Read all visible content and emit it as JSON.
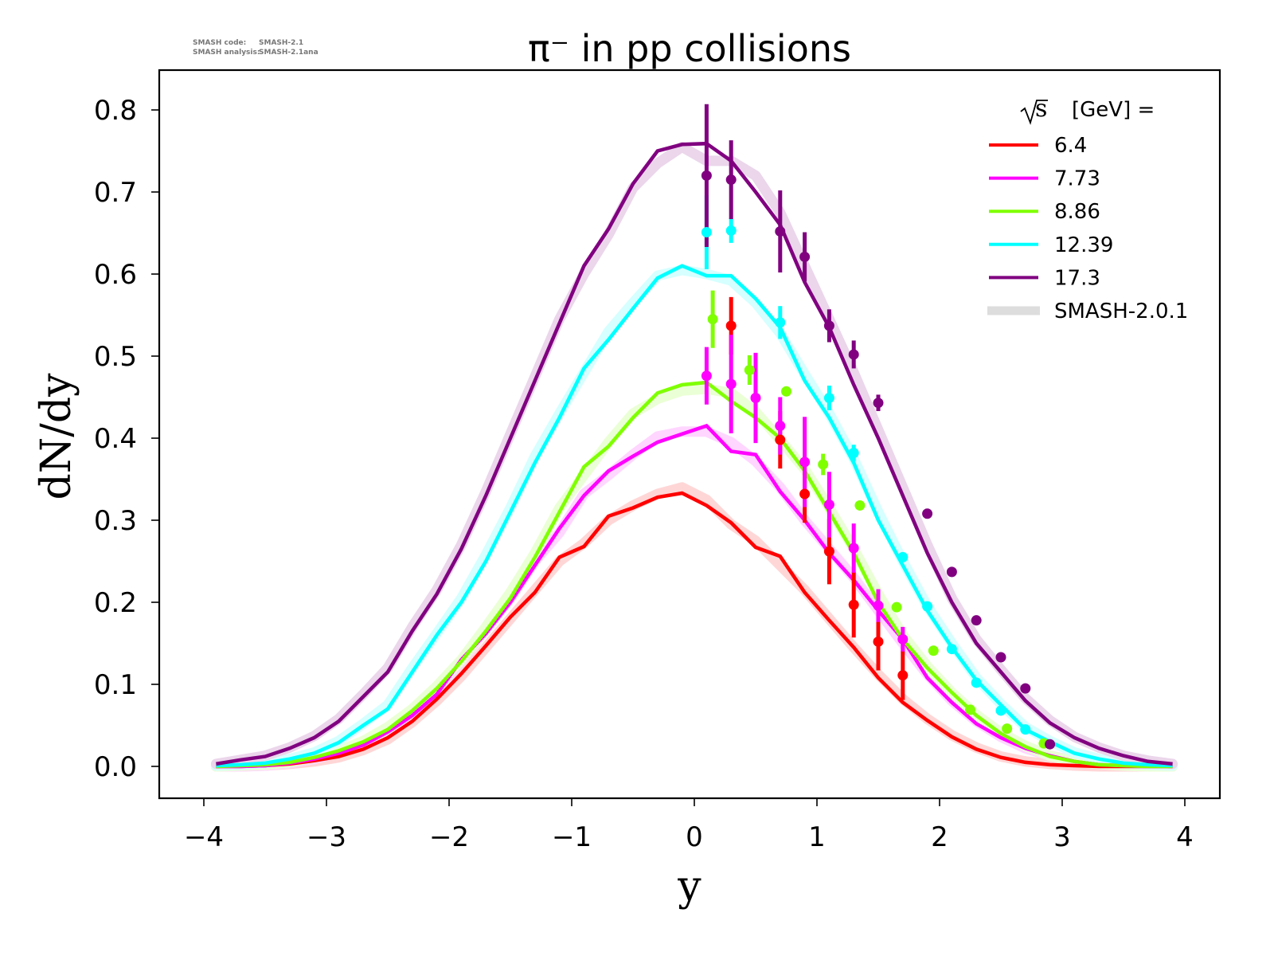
{
  "meta_text": {
    "line1_label": "SMASH code:",
    "line1_value": "SMASH-2.1",
    "line2_label": "SMASH analysis:",
    "line2_value": "SMASH-2.1ana"
  },
  "chart_data": {
    "type": "line",
    "title": "π⁻ in pp collisions",
    "xlabel": "y",
    "ylabel": "dN/dy",
    "xlim": [
      -4.3,
      4.3
    ],
    "ylim": [
      -0.04,
      0.85
    ],
    "xticks": [
      -4,
      -3,
      -2,
      -1,
      0,
      1,
      2,
      3,
      4
    ],
    "xtick_labels": [
      "−4",
      "−3",
      "−2",
      "−1",
      "0",
      "1",
      "2",
      "3",
      "4"
    ],
    "yticks": [
      0.0,
      0.1,
      0.2,
      0.3,
      0.4,
      0.5,
      0.6,
      0.7,
      0.8
    ],
    "ytick_labels": [
      "0.0",
      "0.1",
      "0.2",
      "0.3",
      "0.4",
      "0.5",
      "0.6",
      "0.7",
      "0.8"
    ],
    "grid": false,
    "legend": {
      "placement": "top-right",
      "title_sqrt": "s",
      "title_rest": "[GeV] =",
      "reference_label": "SMASH-2.0.1",
      "reference_color": "#dddddd"
    },
    "model_x": [
      -3.9,
      -3.7,
      -3.5,
      -3.3,
      -3.1,
      -2.9,
      -2.7,
      -2.5,
      -2.3,
      -2.1,
      -1.9,
      -1.7,
      -1.5,
      -1.3,
      -1.1,
      -0.9,
      -0.7,
      -0.5,
      -0.3,
      -0.1,
      0.1,
      0.3,
      0.5,
      0.7,
      0.9,
      1.1,
      1.3,
      1.5,
      1.7,
      1.9,
      2.1,
      2.3,
      2.5,
      2.7,
      2.9,
      3.1,
      3.3,
      3.5,
      3.7,
      3.9
    ],
    "series": [
      {
        "name": "6.4",
        "color": "#ff0000",
        "model": [
          0.0,
          0.0,
          0.001,
          0.003,
          0.007,
          0.012,
          0.021,
          0.035,
          0.055,
          0.082,
          0.113,
          0.147,
          0.182,
          0.212,
          0.255,
          0.268,
          0.305,
          0.315,
          0.328,
          0.333,
          0.318,
          0.297,
          0.267,
          0.256,
          0.212,
          0.178,
          0.145,
          0.108,
          0.078,
          0.056,
          0.036,
          0.021,
          0.011,
          0.005,
          0.002,
          0.001,
          0.0,
          0.0,
          0.0,
          0.0
        ],
        "reference": [
          0.0,
          0.0,
          0.001,
          0.003,
          0.006,
          0.011,
          0.02,
          0.033,
          0.054,
          0.08,
          0.11,
          0.145,
          0.18,
          0.215,
          0.25,
          0.272,
          0.3,
          0.318,
          0.332,
          0.34,
          0.325,
          0.295,
          0.275,
          0.245,
          0.215,
          0.18,
          0.145,
          0.112,
          0.082,
          0.058,
          0.038,
          0.023,
          0.012,
          0.006,
          0.003,
          0.001,
          0.0,
          0.0,
          0.0,
          0.0
        ],
        "data_x": [
          0.3,
          0.7,
          0.9,
          1.1,
          1.3,
          1.5,
          1.7
        ],
        "data_y": [
          0.537,
          0.398,
          0.332,
          0.262,
          0.197,
          0.152,
          0.111
        ],
        "data_err": [
          0.035,
          0.035,
          0.035,
          0.04,
          0.04,
          0.035,
          0.03
        ]
      },
      {
        "name": "7.73",
        "color": "#ff00ff",
        "model": [
          0.0,
          0.0,
          0.001,
          0.004,
          0.009,
          0.016,
          0.026,
          0.042,
          0.062,
          0.088,
          0.13,
          0.162,
          0.2,
          0.245,
          0.29,
          0.33,
          0.36,
          0.378,
          0.395,
          0.405,
          0.415,
          0.384,
          0.38,
          0.335,
          0.3,
          0.26,
          0.227,
          0.19,
          0.155,
          0.108,
          0.078,
          0.052,
          0.035,
          0.022,
          0.013,
          0.006,
          0.002,
          0.001,
          0.0,
          0.0
        ],
        "reference": [
          0.0,
          0.0,
          0.001,
          0.004,
          0.009,
          0.017,
          0.028,
          0.045,
          0.065,
          0.092,
          0.128,
          0.168,
          0.205,
          0.25,
          0.285,
          0.332,
          0.355,
          0.38,
          0.402,
          0.408,
          0.408,
          0.395,
          0.372,
          0.34,
          0.3,
          0.265,
          0.23,
          0.19,
          0.15,
          0.112,
          0.08,
          0.055,
          0.036,
          0.022,
          0.013,
          0.007,
          0.003,
          0.001,
          0.0,
          0.0
        ],
        "data_x": [
          0.1,
          0.3,
          0.5,
          0.7,
          0.9,
          1.1,
          1.3,
          1.5,
          1.7
        ],
        "data_y": [
          0.476,
          0.466,
          0.449,
          0.415,
          0.371,
          0.319,
          0.266,
          0.196,
          0.155
        ],
        "data_err": [
          0.035,
          0.06,
          0.055,
          0.035,
          0.055,
          0.04,
          0.03,
          0.02,
          0.015
        ]
      },
      {
        "name": "8.86",
        "color": "#7fff00",
        "model": [
          0.0,
          0.001,
          0.002,
          0.005,
          0.011,
          0.019,
          0.03,
          0.045,
          0.068,
          0.095,
          0.128,
          0.165,
          0.205,
          0.255,
          0.31,
          0.365,
          0.39,
          0.425,
          0.455,
          0.465,
          0.468,
          0.445,
          0.425,
          0.4,
          0.36,
          0.31,
          0.26,
          0.2,
          0.155,
          0.12,
          0.09,
          0.062,
          0.04,
          0.024,
          0.012,
          0.006,
          0.002,
          0.001,
          0.0,
          0.0
        ],
        "reference": [
          0.0,
          0.001,
          0.002,
          0.005,
          0.011,
          0.019,
          0.031,
          0.048,
          0.07,
          0.098,
          0.13,
          0.17,
          0.212,
          0.26,
          0.315,
          0.355,
          0.395,
          0.43,
          0.448,
          0.458,
          0.46,
          0.455,
          0.432,
          0.398,
          0.362,
          0.315,
          0.265,
          0.21,
          0.16,
          0.122,
          0.09,
          0.063,
          0.041,
          0.025,
          0.013,
          0.006,
          0.003,
          0.001,
          0.0,
          0.0
        ],
        "data_x": [
          0.15,
          0.45,
          0.75,
          1.05,
          1.35,
          1.65,
          1.95,
          2.25,
          2.55,
          2.85
        ],
        "data_y": [
          0.545,
          0.483,
          0.457,
          0.368,
          0.318,
          0.194,
          0.141,
          0.069,
          0.046,
          0.028
        ],
        "data_err": [
          0.035,
          0.018,
          0.005,
          0.013,
          0.004,
          0.004,
          0.003,
          0.003,
          0.002,
          0.002
        ]
      },
      {
        "name": "12.39",
        "color": "#00ffff",
        "model": [
          0.001,
          0.002,
          0.004,
          0.009,
          0.016,
          0.029,
          0.05,
          0.07,
          0.115,
          0.16,
          0.2,
          0.25,
          0.31,
          0.37,
          0.425,
          0.485,
          0.52,
          0.558,
          0.595,
          0.61,
          0.598,
          0.598,
          0.57,
          0.535,
          0.47,
          0.425,
          0.37,
          0.3,
          0.245,
          0.19,
          0.145,
          0.105,
          0.075,
          0.045,
          0.03,
          0.016,
          0.009,
          0.004,
          0.002,
          0.001
        ],
        "reference": [
          0.001,
          0.002,
          0.004,
          0.009,
          0.017,
          0.031,
          0.052,
          0.075,
          0.12,
          0.162,
          0.205,
          0.258,
          0.315,
          0.378,
          0.43,
          0.48,
          0.53,
          0.565,
          0.598,
          0.605,
          0.6,
          0.592,
          0.565,
          0.528,
          0.478,
          0.43,
          0.375,
          0.31,
          0.25,
          0.195,
          0.15,
          0.108,
          0.076,
          0.048,
          0.031,
          0.017,
          0.009,
          0.004,
          0.002,
          0.001
        ],
        "data_x": [
          0.1,
          0.3,
          0.7,
          1.1,
          1.3,
          1.7,
          1.9,
          2.1,
          2.3,
          2.5,
          2.7
        ],
        "data_y": [
          0.651,
          0.653,
          0.541,
          0.449,
          0.382,
          0.255,
          0.195,
          0.143,
          0.102,
          0.068,
          0.045
        ],
        "data_err": [
          0.045,
          0.015,
          0.02,
          0.015,
          0.01,
          0.004,
          0.004,
          0.003,
          0.003,
          0.002,
          0.002
        ]
      },
      {
        "name": "17.3",
        "color": "#800080",
        "model": [
          0.003,
          0.008,
          0.012,
          0.022,
          0.035,
          0.055,
          0.085,
          0.115,
          0.165,
          0.21,
          0.265,
          0.33,
          0.4,
          0.47,
          0.54,
          0.61,
          0.655,
          0.71,
          0.75,
          0.758,
          0.759,
          0.738,
          0.7,
          0.66,
          0.59,
          0.535,
          0.465,
          0.4,
          0.33,
          0.26,
          0.2,
          0.15,
          0.115,
          0.08,
          0.053,
          0.035,
          0.022,
          0.013,
          0.006,
          0.003
        ],
        "reference": [
          0.003,
          0.008,
          0.013,
          0.023,
          0.037,
          0.058,
          0.088,
          0.12,
          0.17,
          0.215,
          0.27,
          0.335,
          0.405,
          0.475,
          0.545,
          0.6,
          0.648,
          0.705,
          0.735,
          0.755,
          0.738,
          0.738,
          0.72,
          0.675,
          0.61,
          0.545,
          0.48,
          0.41,
          0.34,
          0.27,
          0.205,
          0.155,
          0.118,
          0.083,
          0.056,
          0.036,
          0.023,
          0.013,
          0.007,
          0.003
        ],
        "data_x": [
          0.1,
          0.3,
          0.7,
          0.9,
          1.1,
          1.3,
          1.5,
          1.9,
          2.1,
          2.3,
          2.5,
          2.7,
          2.9
        ],
        "data_y": [
          0.72,
          0.715,
          0.652,
          0.621,
          0.537,
          0.502,
          0.443,
          0.308,
          0.237,
          0.178,
          0.133,
          0.095,
          0.027
        ],
        "data_err": [
          0.087,
          0.048,
          0.05,
          0.03,
          0.02,
          0.017,
          0.01,
          0.006,
          0.004,
          0.003,
          0.003,
          0.003,
          0.002
        ]
      }
    ]
  }
}
